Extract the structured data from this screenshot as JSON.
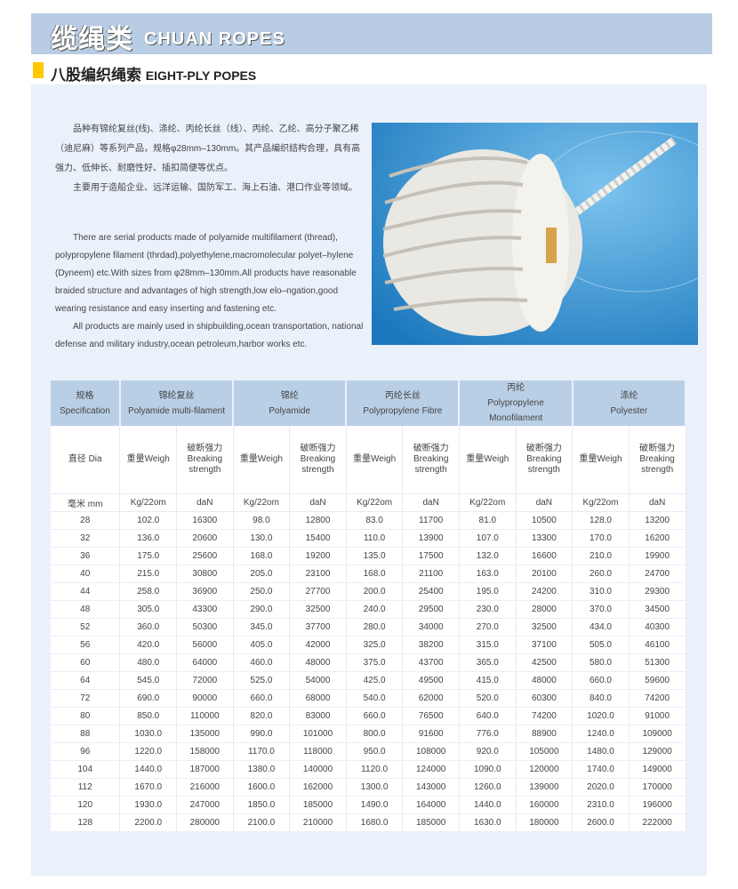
{
  "banner": {
    "title_cn": "缆绳类",
    "title_en": "CHUAN ROPES"
  },
  "section": {
    "title_cn": "八股编织绳索",
    "title_en": "EIGHT-PLY POPES",
    "marker_color": "#ffc800"
  },
  "intro_cn": [
    "品种有锦纶复丝(线)、涤纶、丙纶长丝（线）、丙纶、乙纶、高分子聚乙稀（迪尼麻）等系列产品，规格φ28mm–130mm。其产品编织结构合理，具有高强力、低伸长、耐磨性好、插扣简便等优点。",
    "主要用于造船企业、远洋运输、国防军工、海上石油、港口作业等领域。"
  ],
  "intro_en": [
    "There are serial products made of polyamide multifilament (thread), polypropylene filament (thrdad),polyethylene,macromolecular polyet–hylene (Dyneem) etc.With sizes from φ28mm–130mm.All products have reasonable braided structure and advantages of high strength,low elo–ngation,good wearing resistance and easy  inserting and fastening etc.",
    "All products are mainly used in shipbuilding,ocean transportation, national defense and military industry,ocean petroleum,harbor works etc."
  ],
  "table": {
    "spec_header": {
      "cn": "规格",
      "en": "Specification"
    },
    "materials": [
      {
        "cn": "锦纶复丝",
        "en": "Polyamide multi-filament"
      },
      {
        "cn": "锦纶",
        "en": "Polyamide"
      },
      {
        "cn": "丙纶长丝",
        "en": "Polypropylene Fibre"
      },
      {
        "cn": "丙纶",
        "en": "Polypropylene Monofilament"
      },
      {
        "cn": "涤纶",
        "en": "Polyester"
      }
    ],
    "dia_label": "直径 Dia",
    "weight_label": "重量Weigh",
    "strength_label": {
      "cn": "破断强力",
      "en1": "Breaking",
      "en2": "strength"
    },
    "unit_dia": "毫米 mm",
    "unit_weight": "Kg/22om",
    "unit_strength": "daN",
    "rows": [
      [
        "28",
        "102.0",
        "16300",
        "98.0",
        "12800",
        "83.0",
        "11700",
        "81.0",
        "10500",
        "128.0",
        "13200"
      ],
      [
        "32",
        "136.0",
        "20600",
        "130.0",
        "15400",
        "110.0",
        "13900",
        "107.0",
        "13300",
        "170.0",
        "16200"
      ],
      [
        "36",
        "175.0",
        "25600",
        "168.0",
        "19200",
        "135.0",
        "17500",
        "132.0",
        "16600",
        "210.0",
        "19900"
      ],
      [
        "40",
        "215.0",
        "30800",
        "205.0",
        "23100",
        "168.0",
        "21100",
        "163.0",
        "20100",
        "260.0",
        "24700"
      ],
      [
        "44",
        "258.0",
        "36900",
        "250.0",
        "27700",
        "200.0",
        "25400",
        "195.0",
        "24200",
        "310.0",
        "29300"
      ],
      [
        "48",
        "305.0",
        "43300",
        "290.0",
        "32500",
        "240.0",
        "29500",
        "230.0",
        "28000",
        "370.0",
        "34500"
      ],
      [
        "52",
        "360.0",
        "50300",
        "345.0",
        "37700",
        "280.0",
        "34000",
        "270.0",
        "32500",
        "434.0",
        "40300"
      ],
      [
        "56",
        "420.0",
        "56000",
        "405.0",
        "42000",
        "325.0",
        "38200",
        "315.0",
        "37100",
        "505.0",
        "46100"
      ],
      [
        "60",
        "480.0",
        "64000",
        "460.0",
        "48000",
        "375.0",
        "43700",
        "365.0",
        "42500",
        "580.0",
        "51300"
      ],
      [
        "64",
        "545.0",
        "72000",
        "525.0",
        "54000",
        "425.0",
        "49500",
        "415.0",
        "48000",
        "660.0",
        "59600"
      ],
      [
        "72",
        "690.0",
        "90000",
        "660.0",
        "68000",
        "540.0",
        "62000",
        "520.0",
        "60300",
        "840.0",
        "74200"
      ],
      [
        "80",
        "850.0",
        "110000",
        "820.0",
        "83000",
        "660.0",
        "76500",
        "640.0",
        "74200",
        "1020.0",
        "91000"
      ],
      [
        "88",
        "1030.0",
        "135000",
        "990.0",
        "101000",
        "800.0",
        "91600",
        "776.0",
        "88900",
        "1240.0",
        "109000"
      ],
      [
        "96",
        "1220.0",
        "158000",
        "1170.0",
        "118000",
        "950.0",
        "108000",
        "920.0",
        "105000",
        "1480.0",
        "129000"
      ],
      [
        "104",
        "1440.0",
        "187000",
        "1380.0",
        "140000",
        "1120.0",
        "124000",
        "1090.0",
        "120000",
        "1740.0",
        "149000"
      ],
      [
        "112",
        "1670.0",
        "216000",
        "1600.0",
        "162000",
        "1300.0",
        "143000",
        "1260.0",
        "139000",
        "2020.0",
        "170000"
      ],
      [
        "120",
        "1930.0",
        "247000",
        "1850.0",
        "185000",
        "1490.0",
        "164000",
        "1440.0",
        "160000",
        "2310.0",
        "196000"
      ],
      [
        "128",
        "2200.0",
        "280000",
        "2100.0",
        "210000",
        "1680.0",
        "185000",
        "1630.0",
        "180000",
        "2600.0",
        "222000"
      ]
    ]
  }
}
